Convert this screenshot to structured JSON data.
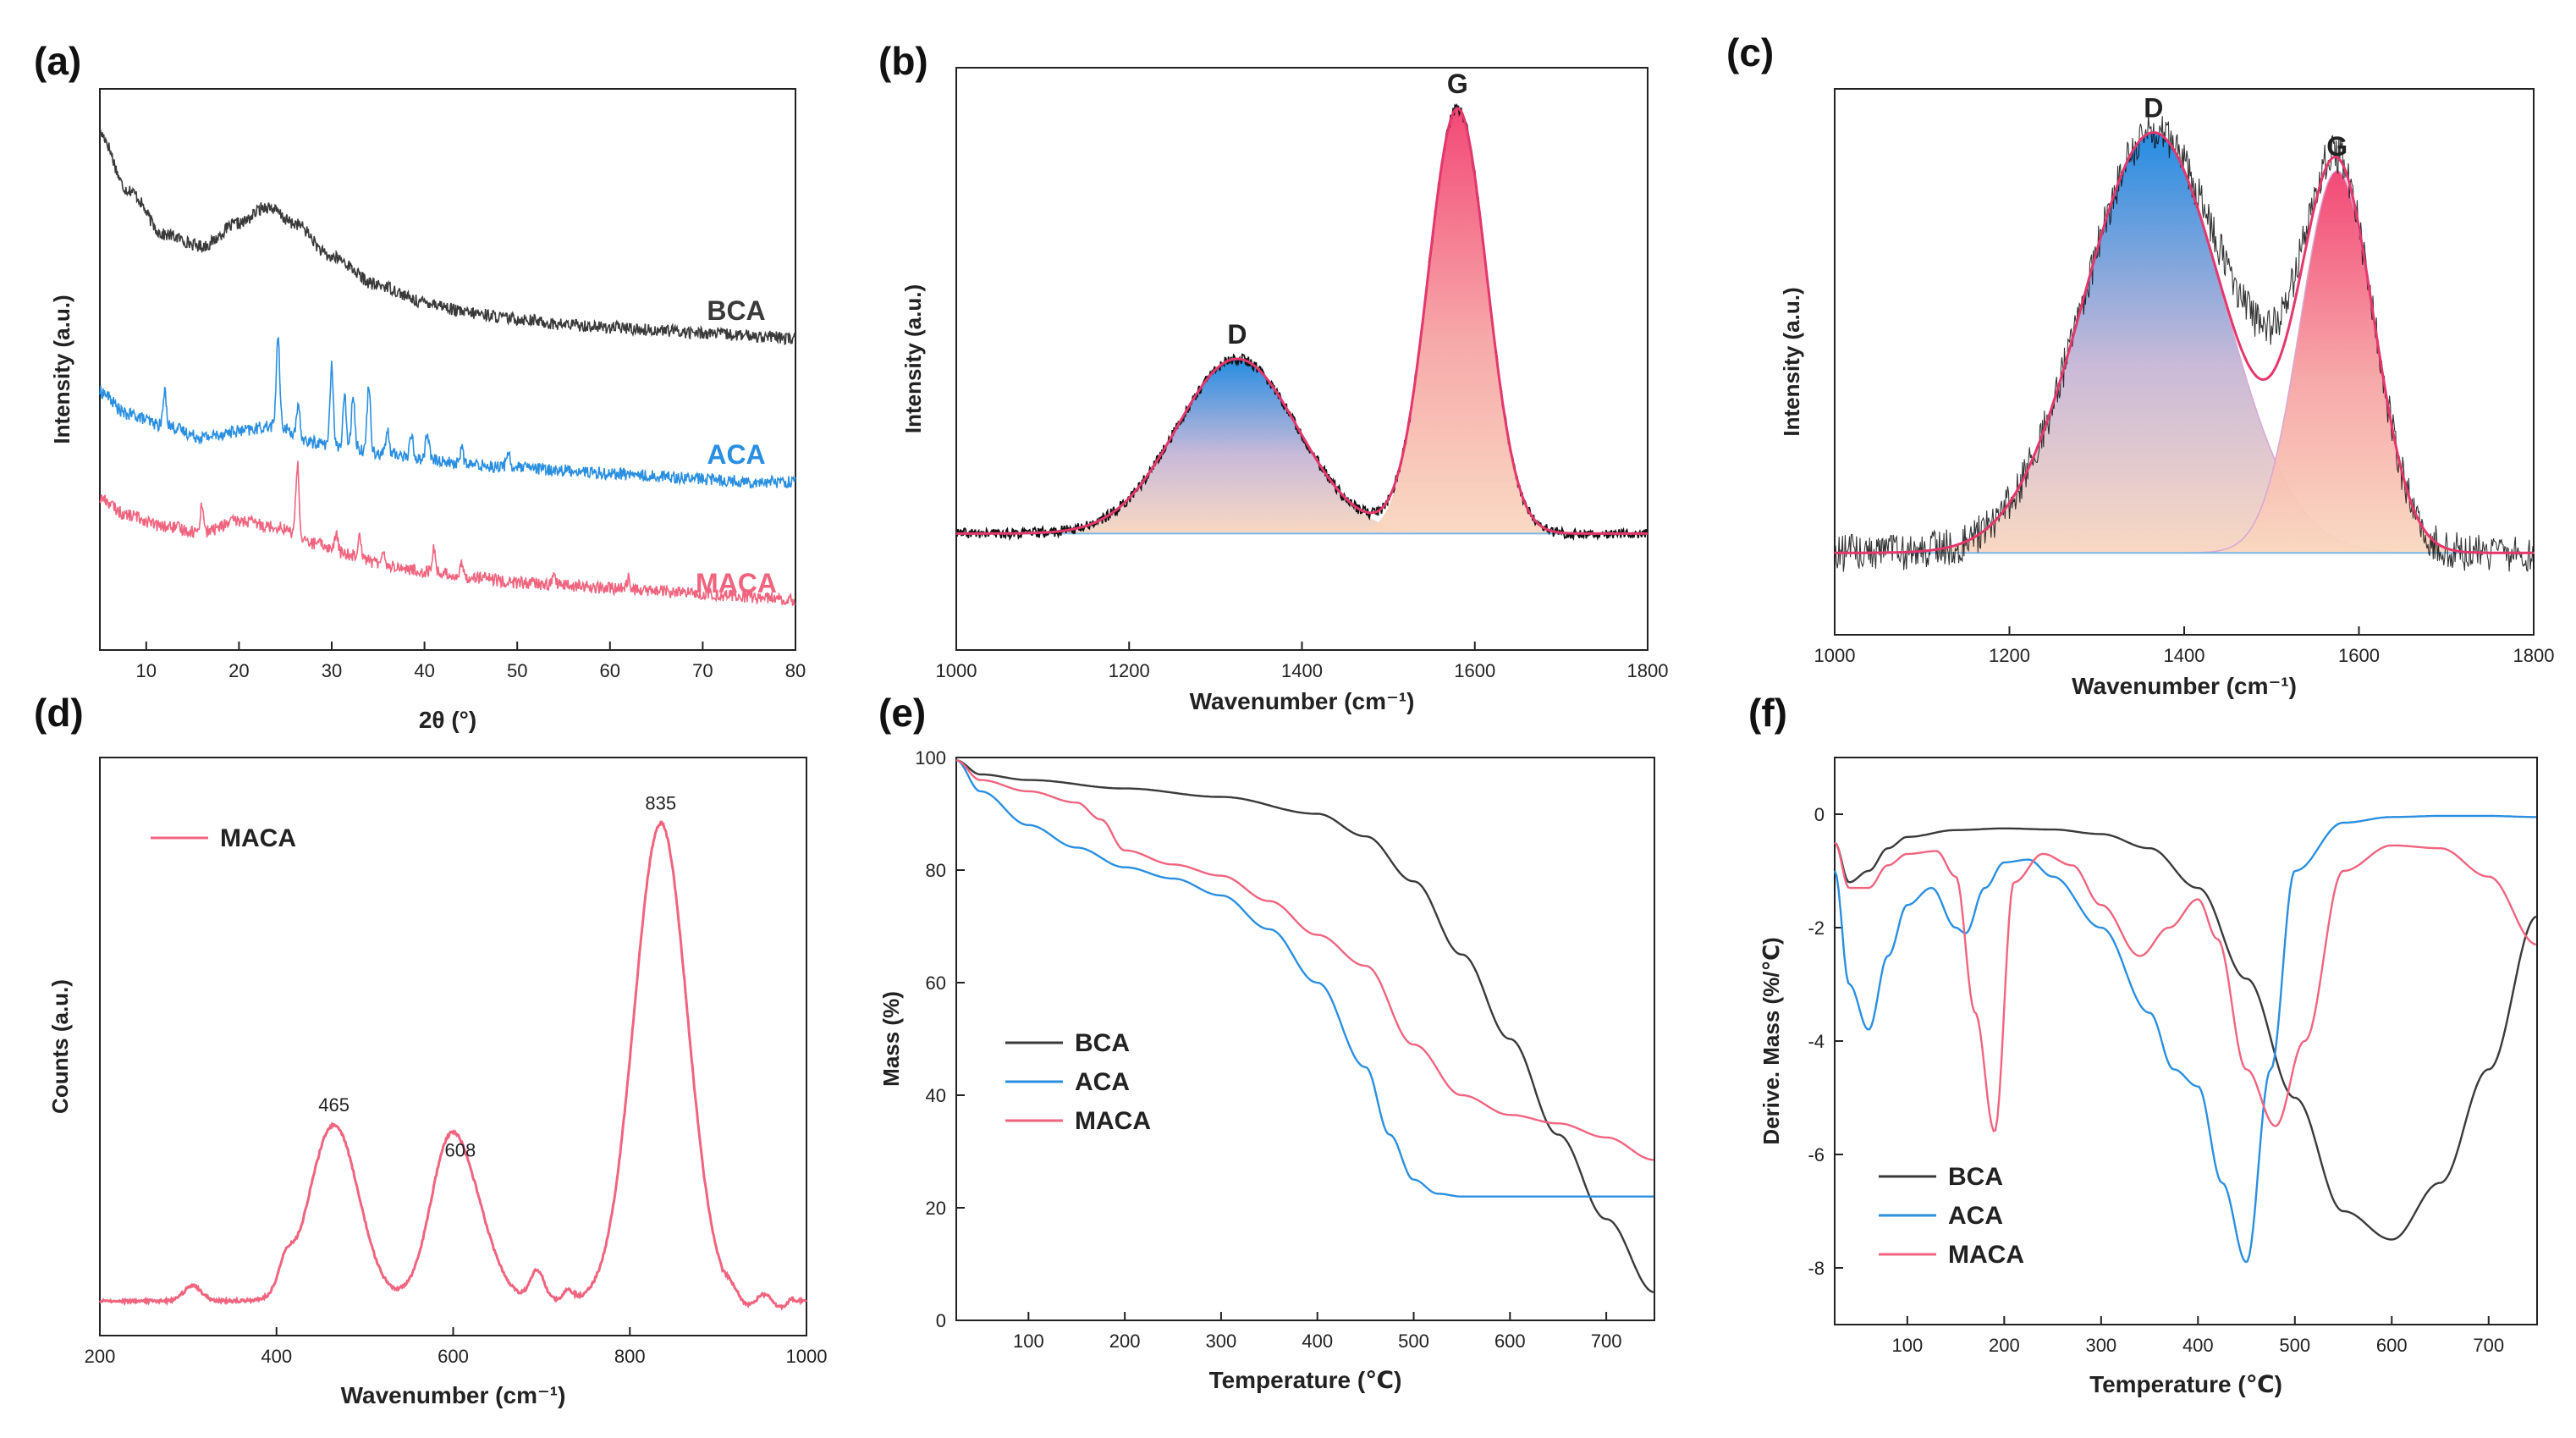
{
  "colors": {
    "BCA": "#3a3a3a",
    "ACA": "#2a8fe0",
    "MACA": "#f0647f",
    "fitline": "#e4376b",
    "base": "#7ab8e8",
    "navy": "#2a2a2a"
  },
  "chart_data": [
    {
      "id": "a",
      "type": "line",
      "panel_label": "(a)",
      "xlabel": "2θ (°)",
      "ylabel": "Intensity (a.u.)",
      "xlim": [
        5,
        80
      ],
      "xticks": [
        "10",
        "20",
        "30",
        "40",
        "50",
        "60",
        "70",
        "80"
      ],
      "series": [
        {
          "name": "BCA",
          "label": "BCA",
          "color_key": "BCA",
          "x": [
            5,
            8,
            12,
            16,
            20,
            23,
            26,
            30,
            35,
            40,
            45,
            50,
            55,
            60,
            65,
            70,
            75,
            80
          ],
          "y": [
            0.92,
            0.82,
            0.74,
            0.72,
            0.76,
            0.79,
            0.76,
            0.7,
            0.65,
            0.62,
            0.6,
            0.59,
            0.58,
            0.575,
            0.57,
            0.565,
            0.56,
            0.555
          ],
          "peaks": []
        },
        {
          "name": "ACA",
          "label": "ACA",
          "color_key": "ACA",
          "x": [
            5,
            8,
            12,
            16,
            20,
            24,
            28,
            32,
            36,
            40,
            45,
            50,
            55,
            60,
            65,
            70,
            75,
            80
          ],
          "y": [
            0.46,
            0.42,
            0.4,
            0.38,
            0.39,
            0.4,
            0.37,
            0.36,
            0.35,
            0.34,
            0.33,
            0.325,
            0.32,
            0.315,
            0.31,
            0.305,
            0.3,
            0.3
          ],
          "peaks": [
            [
              12,
              0.06
            ],
            [
              24.2,
              0.16
            ],
            [
              26.4,
              0.05
            ],
            [
              30,
              0.14
            ],
            [
              31.4,
              0.09
            ],
            [
              32.3,
              0.1
            ],
            [
              34,
              0.12
            ],
            [
              36,
              0.04
            ],
            [
              38.6,
              0.04
            ],
            [
              40.3,
              0.05
            ],
            [
              44,
              0.03
            ],
            [
              49,
              0.03
            ]
          ]
        },
        {
          "name": "MACA",
          "label": "MACA",
          "color_key": "MACA",
          "x": [
            5,
            8,
            12,
            16,
            20,
            24,
            28,
            32,
            36,
            40,
            45,
            50,
            55,
            60,
            65,
            70,
            75,
            80
          ],
          "y": [
            0.27,
            0.24,
            0.22,
            0.21,
            0.23,
            0.22,
            0.19,
            0.17,
            0.15,
            0.14,
            0.13,
            0.12,
            0.115,
            0.11,
            0.105,
            0.1,
            0.095,
            0.09
          ],
          "peaks": [
            [
              16,
              0.05
            ],
            [
              26.3,
              0.13
            ],
            [
              30.5,
              0.03
            ],
            [
              33,
              0.04
            ],
            [
              35.5,
              0.03
            ],
            [
              41,
              0.04
            ],
            [
              44,
              0.02
            ],
            [
              54,
              0.02
            ],
            [
              62,
              0.02
            ]
          ]
        }
      ]
    },
    {
      "id": "b",
      "type": "line",
      "panel_label": "(b)",
      "xlabel": "Wavenumber (cm⁻¹)",
      "ylabel": "Intensity (a.u.)",
      "xlim": [
        1000,
        1800
      ],
      "xticks": [
        "1000",
        "1200",
        "1400",
        "1600",
        "1800"
      ],
      "baseline": 0.2,
      "bands": [
        {
          "name": "D",
          "label": "D",
          "center": 1325,
          "height": 0.5,
          "width": 70
        },
        {
          "name": "G",
          "label": "G",
          "center": 1580,
          "height": 0.93,
          "width": 34
        }
      ]
    },
    {
      "id": "c",
      "type": "line",
      "panel_label": "(c)",
      "xlabel": "Wavenumber (cm⁻¹)",
      "ylabel": "Intensity (a.u.)",
      "xlim": [
        1000,
        1800
      ],
      "xticks": [
        "1000",
        "1200",
        "1400",
        "1600",
        "1800"
      ],
      "baseline": 0.15,
      "bands": [
        {
          "name": "D",
          "label": "D",
          "center": 1365,
          "height": 0.92,
          "width": 80
        },
        {
          "name": "G",
          "label": "G",
          "center": 1575,
          "height": 0.85,
          "width": 42
        }
      ]
    },
    {
      "id": "d",
      "type": "line",
      "panel_label": "(d)",
      "xlabel": "Wavenumber (cm⁻¹)",
      "ylabel": "Counts (a.u.)",
      "xlim": [
        200,
        1000
      ],
      "xticks": [
        "200",
        "400",
        "600",
        "800",
        "1000"
      ],
      "legend": "top-left",
      "series": [
        {
          "name": "MACA",
          "label": "MACA",
          "color_key": "MACA"
        }
      ],
      "peaks": [
        {
          "center": 465,
          "height": 0.35,
          "width": 28,
          "label": "465"
        },
        {
          "center": 608,
          "height": 0.26,
          "width": 28,
          "label": "608"
        },
        {
          "center": 835,
          "height": 0.95,
          "width": 30,
          "label": "835"
        },
        {
          "center": 590,
          "height": 0.1,
          "width": 18,
          "label": ""
        },
        {
          "center": 410,
          "height": 0.05,
          "width": 8,
          "label": ""
        },
        {
          "center": 695,
          "height": 0.06,
          "width": 8,
          "label": ""
        },
        {
          "center": 730,
          "height": 0.02,
          "width": 6,
          "label": ""
        },
        {
          "center": 305,
          "height": 0.03,
          "width": 10,
          "label": ""
        }
      ]
    },
    {
      "id": "e",
      "type": "line",
      "panel_label": "(e)",
      "xlabel": "Temperature (℃)",
      "ylabel": "Mass (%)",
      "xlim": [
        25,
        750
      ],
      "ylim": [
        0,
        100
      ],
      "xticks": [
        100,
        200,
        300,
        400,
        500,
        600,
        700
      ],
      "yticks": [
        0,
        20,
        40,
        60,
        80,
        100
      ],
      "legend": "center-left",
      "series": [
        {
          "name": "BCA",
          "label": "BCA",
          "color_key": "BCA",
          "x": [
            25,
            50,
            100,
            200,
            300,
            400,
            450,
            500,
            550,
            600,
            650,
            700,
            750
          ],
          "y": [
            99.5,
            97,
            96,
            94.5,
            93,
            90,
            86,
            78,
            65,
            50,
            33,
            18,
            5
          ]
        },
        {
          "name": "ACA",
          "label": "ACA",
          "color_key": "ACA",
          "x": [
            25,
            50,
            100,
            150,
            200,
            250,
            300,
            350,
            400,
            450,
            475,
            500,
            525,
            550,
            600,
            650,
            700,
            750
          ],
          "y": [
            99.5,
            94,
            88,
            84,
            80.5,
            78.5,
            75.5,
            69.5,
            60,
            45,
            33,
            25,
            22.5,
            22,
            22,
            22,
            22,
            22
          ]
        },
        {
          "name": "MACA",
          "label": "MACA",
          "color_key": "MACA",
          "x": [
            25,
            50,
            100,
            150,
            175,
            200,
            250,
            300,
            350,
            400,
            450,
            500,
            550,
            600,
            650,
            700,
            750
          ],
          "y": [
            99.5,
            96,
            94,
            92,
            89,
            83.5,
            81,
            79,
            74.5,
            68.5,
            63,
            49,
            40,
            36.5,
            35,
            32.5,
            28.5
          ]
        }
      ]
    },
    {
      "id": "f",
      "type": "line",
      "panel_label": "(f)",
      "xlabel": "Temperature (℃)",
      "ylabel": "Derive. Mass (%/℃)",
      "xlim": [
        25,
        750
      ],
      "ylim": [
        -9,
        1
      ],
      "xticks": [
        100,
        200,
        300,
        400,
        500,
        600,
        700
      ],
      "yticks": [
        0,
        -2,
        -4,
        -6,
        -8
      ],
      "legend": "bottom-left",
      "series": [
        {
          "name": "BCA",
          "label": "BCA",
          "color_key": "BCA",
          "x": [
            25,
            40,
            60,
            80,
            100,
            150,
            200,
            250,
            300,
            350,
            400,
            450,
            500,
            550,
            600,
            650,
            700,
            750
          ],
          "y": [
            -0.5,
            -1.2,
            -1.0,
            -0.6,
            -0.4,
            -0.28,
            -0.25,
            -0.27,
            -0.35,
            -0.6,
            -1.3,
            -2.9,
            -5.0,
            -7.0,
            -7.5,
            -6.5,
            -4.5,
            -1.8
          ]
        },
        {
          "name": "ACA",
          "label": "ACA",
          "color_key": "ACA",
          "x": [
            25,
            40,
            60,
            80,
            100,
            125,
            150,
            160,
            180,
            200,
            225,
            250,
            300,
            350,
            375,
            400,
            425,
            450,
            475,
            500,
            550,
            600,
            650,
            700,
            750
          ],
          "y": [
            -1.0,
            -3.0,
            -3.8,
            -2.5,
            -1.6,
            -1.3,
            -2.0,
            -2.1,
            -1.3,
            -0.85,
            -0.8,
            -1.1,
            -2.0,
            -3.5,
            -4.5,
            -4.8,
            -6.5,
            -7.9,
            -4.5,
            -1.0,
            -0.15,
            -0.05,
            -0.03,
            -0.03,
            -0.05
          ]
        },
        {
          "name": "MACA",
          "label": "MACA",
          "color_key": "MACA",
          "x": [
            25,
            40,
            60,
            80,
            100,
            130,
            150,
            170,
            190,
            210,
            240,
            270,
            300,
            340,
            370,
            400,
            420,
            450,
            480,
            510,
            550,
            600,
            650,
            700,
            750
          ],
          "y": [
            -0.5,
            -1.3,
            -1.3,
            -0.9,
            -0.7,
            -0.65,
            -1.1,
            -3.5,
            -5.6,
            -1.2,
            -0.7,
            -0.9,
            -1.6,
            -2.5,
            -2.0,
            -1.5,
            -2.2,
            -4.5,
            -5.5,
            -4.0,
            -1.0,
            -0.55,
            -0.6,
            -1.1,
            -2.3
          ]
        }
      ]
    }
  ]
}
